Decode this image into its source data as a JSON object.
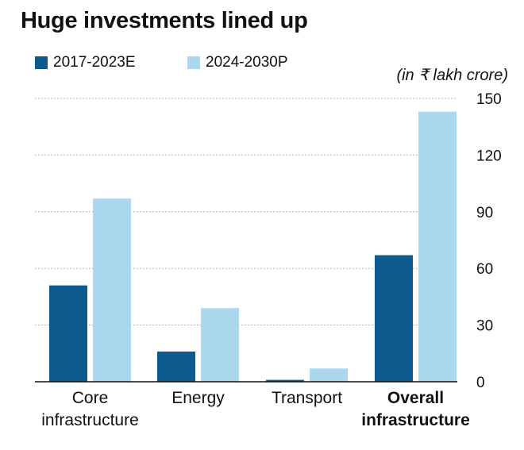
{
  "chart_data": {
    "type": "bar",
    "title": "Huge investments lined up",
    "unit_note": "(in ₹ lakh crore)",
    "categories": [
      {
        "lines": [
          "Core",
          "infrastructure"
        ],
        "bold": false
      },
      {
        "lines": [
          "Energy"
        ],
        "bold": false
      },
      {
        "lines": [
          "Transport"
        ],
        "bold": false
      },
      {
        "lines": [
          "Overall",
          "infrastructure"
        ],
        "bold": true
      }
    ],
    "series": [
      {
        "name": "2017-2023E",
        "color": "#0d5a8c",
        "values": [
          51,
          16,
          1,
          67
        ]
      },
      {
        "name": "2024-2030P",
        "color": "#acd8ee",
        "values": [
          97,
          39,
          7,
          143
        ]
      }
    ],
    "yticks": [
      "0",
      "30",
      "60",
      "90",
      "120",
      "150"
    ],
    "ylim": [
      0,
      150
    ],
    "grid": true,
    "legend_position": "top-left"
  }
}
